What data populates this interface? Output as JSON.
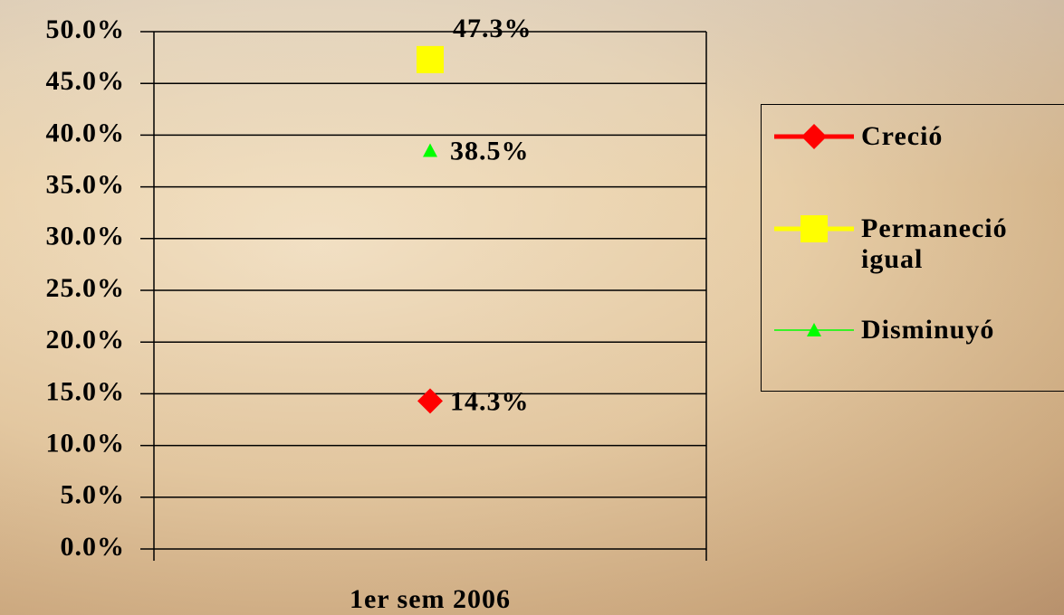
{
  "chart_data": {
    "type": "line",
    "categories": [
      "1er sem 2006"
    ],
    "series": [
      {
        "name": "Creció",
        "color": "#ff0000",
        "marker": "diamond",
        "values": [
          14.3
        ],
        "value_labels": [
          "14.3%"
        ]
      },
      {
        "name": "Permaneció igual",
        "color": "#ffff00",
        "marker": "square",
        "values": [
          47.3
        ],
        "value_labels": [
          "47.3%"
        ]
      },
      {
        "name": "Disminuyó",
        "color": "#00ff00",
        "marker": "triangle",
        "values": [
          38.5
        ],
        "value_labels": [
          "38.5%"
        ]
      }
    ],
    "ylim": [
      0,
      50
    ],
    "yticks": [
      {
        "value": 0,
        "label": "0.0%"
      },
      {
        "value": 5,
        "label": "5.0%"
      },
      {
        "value": 10,
        "label": "10.0%"
      },
      {
        "value": 15,
        "label": "15.0%"
      },
      {
        "value": 20,
        "label": "20.0%"
      },
      {
        "value": 25,
        "label": "25.0%"
      },
      {
        "value": 30,
        "label": "30.0%"
      },
      {
        "value": 35,
        "label": "35.0%"
      },
      {
        "value": 40,
        "label": "40.0%"
      },
      {
        "value": 45,
        "label": "45.0%"
      },
      {
        "value": 50,
        "label": "50.0%"
      }
    ],
    "grid": true,
    "legend": "right"
  }
}
